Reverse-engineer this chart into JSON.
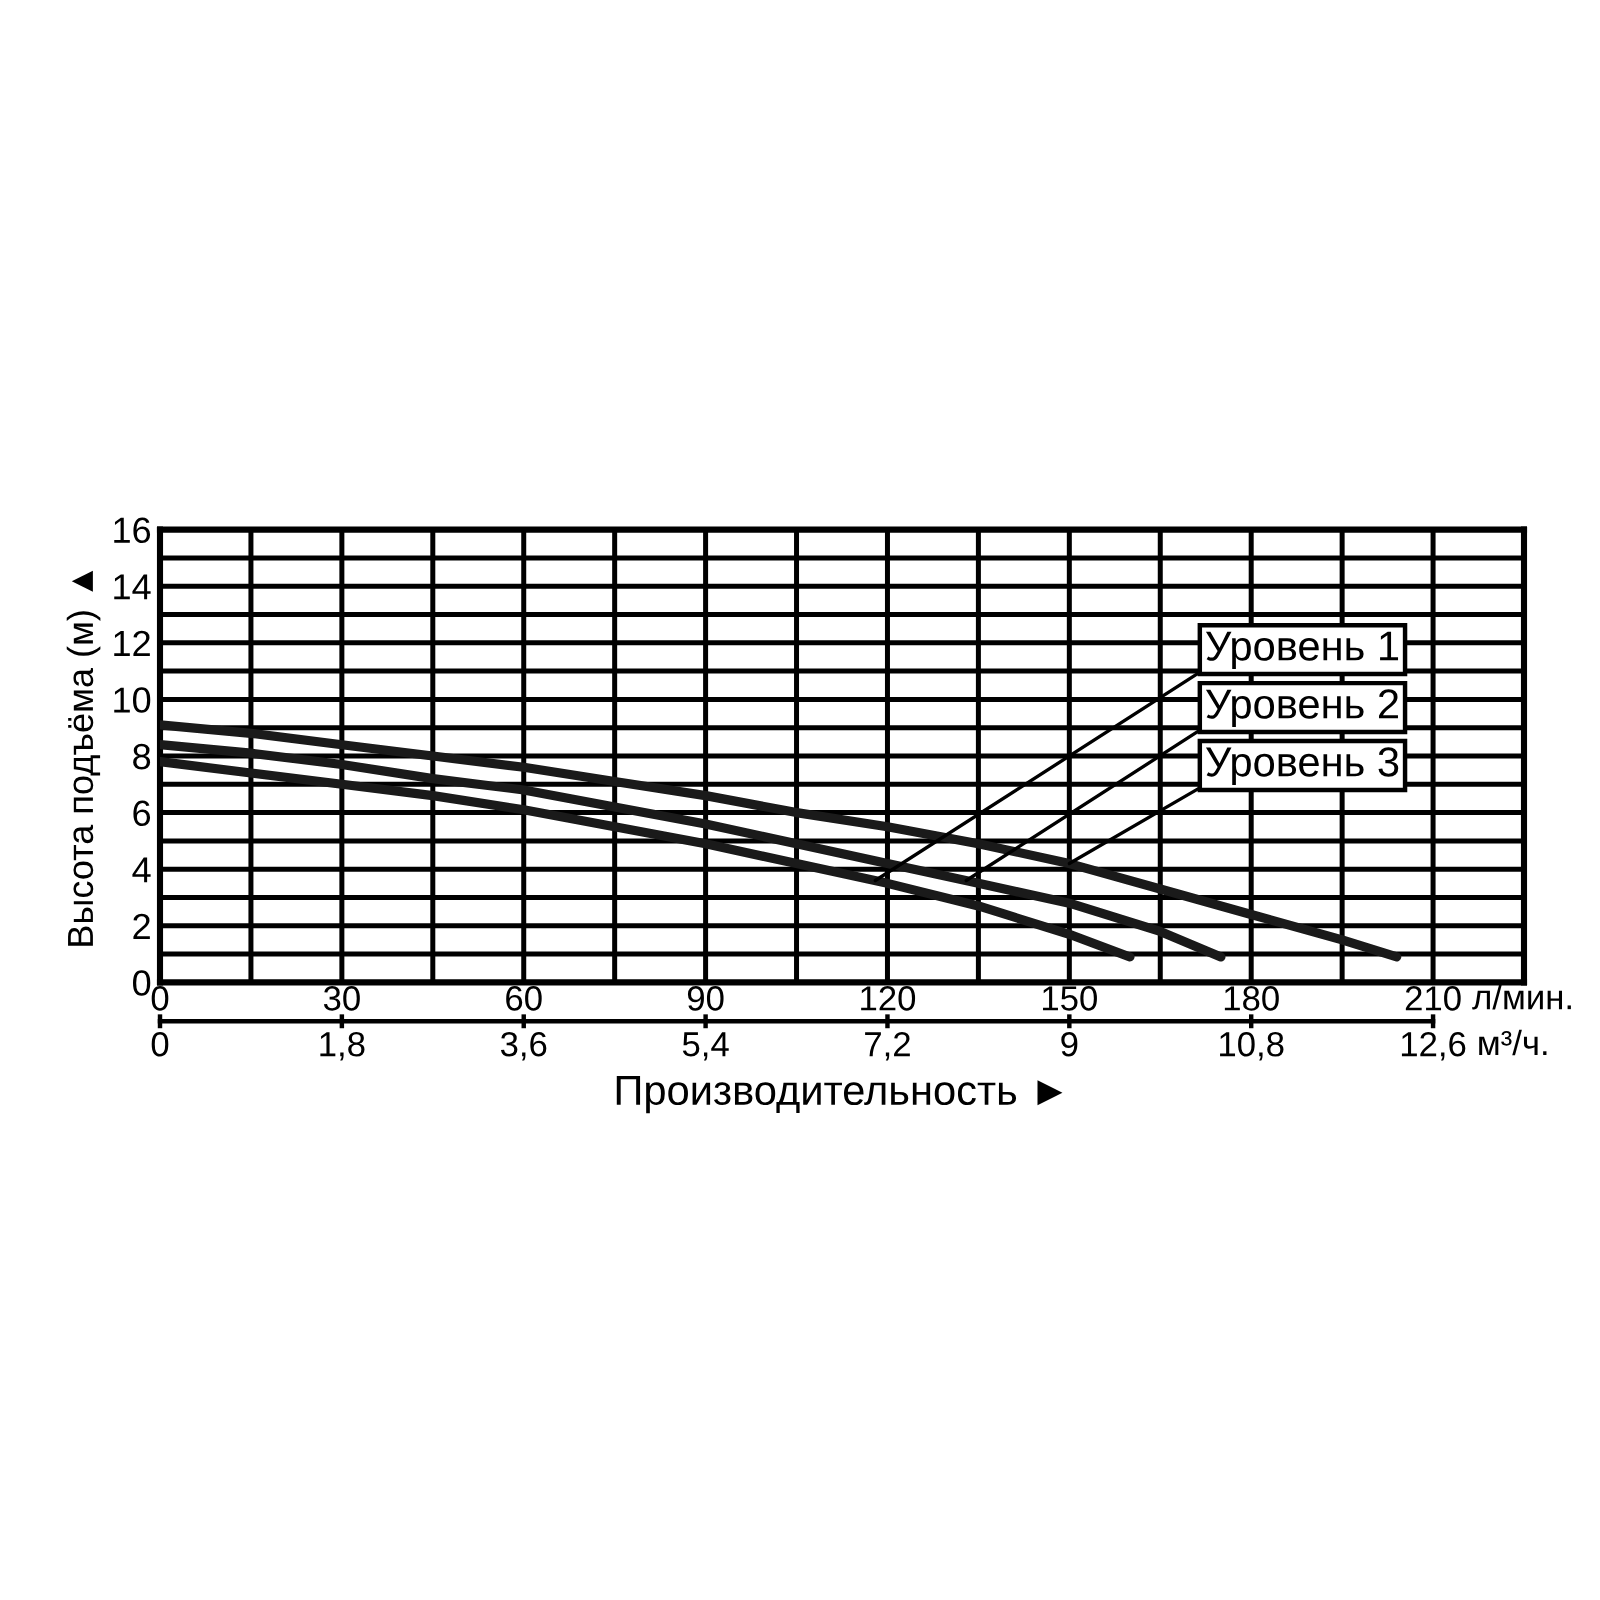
{
  "chart_data": {
    "type": "line",
    "xlabel": "Производительность ►",
    "ylabel": "Высота подъёма (м) ▲",
    "xlim": [
      0,
      225
    ],
    "xticks": [
      0,
      {
        "value": 15,
        "label": null
      },
      30,
      {
        "value": 45,
        "label": null
      },
      60,
      {
        "value": 75,
        "label": null
      },
      90,
      {
        "value": 105,
        "label": null
      },
      120,
      {
        "value": 135,
        "label": null
      },
      150,
      {
        "value": 165,
        "label": null
      },
      180,
      {
        "value": 195,
        "label": null
      },
      210
    ],
    "x2lim": [
      0,
      13.5
    ],
    "x2ticks": [
      0,
      {
        "value": 1.8,
        "label": "1,8"
      },
      {
        "value": 3.6,
        "label": "3,6"
      },
      {
        "value": 5.4,
        "label": "5,4"
      },
      {
        "value": 7.2,
        "label": "7,2"
      },
      9,
      {
        "value": 10.8,
        "label": "10,8"
      },
      {
        "value": 12.6,
        "label": "12,6"
      }
    ],
    "ylim": [
      0,
      16
    ],
    "yticks": [
      0,
      {
        "value": 1,
        "label": null
      },
      2,
      {
        "value": 3,
        "label": null
      },
      4,
      {
        "value": 5,
        "label": null
      },
      6,
      {
        "value": 7,
        "label": null
      },
      8,
      {
        "value": 9,
        "label": null
      },
      10,
      {
        "value": 11,
        "label": null
      },
      12,
      {
        "value": 13,
        "label": null
      },
      14,
      {
        "value": 15,
        "label": null
      },
      16
    ],
    "grid": true,
    "series": [
      {
        "color": "#1a1a1a",
        "x": [
          0,
          15,
          30,
          45,
          60,
          75,
          90,
          105,
          120,
          135,
          150,
          160
        ],
        "values": [
          7.8,
          7.4,
          7.0,
          6.6,
          6.1,
          5.5,
          4.9,
          4.2,
          3.5,
          2.7,
          1.7,
          0.9
        ]
      },
      {
        "color": "#1a1a1a",
        "x": [
          0,
          15,
          30,
          45,
          60,
          75,
          90,
          105,
          120,
          135,
          150,
          165,
          175
        ],
        "values": [
          8.4,
          8.1,
          7.7,
          7.2,
          6.8,
          6.2,
          5.6,
          4.9,
          4.2,
          3.5,
          2.8,
          1.8,
          0.9
        ]
      },
      {
        "color": "#1a1a1a",
        "x": [
          0,
          15,
          30,
          45,
          60,
          75,
          90,
          105,
          120,
          135,
          150,
          165,
          180,
          195,
          204
        ],
        "values": [
          9.1,
          8.8,
          8.4,
          8.0,
          7.6,
          7.1,
          6.6,
          6.0,
          5.5,
          4.9,
          4.2,
          3.3,
          2.4,
          1.5,
          0.9
        ]
      }
    ],
    "annotations": [
      {
        "text": "Уровень 1",
        "x": 118,
        "y": 3.6
      },
      {
        "text": "Уровень 2",
        "x": 133,
        "y": 3.6
      },
      {
        "text": "Уровень 3",
        "x": 150,
        "y": 4.2
      },
      "л/мин.",
      "м³/ч."
    ]
  }
}
